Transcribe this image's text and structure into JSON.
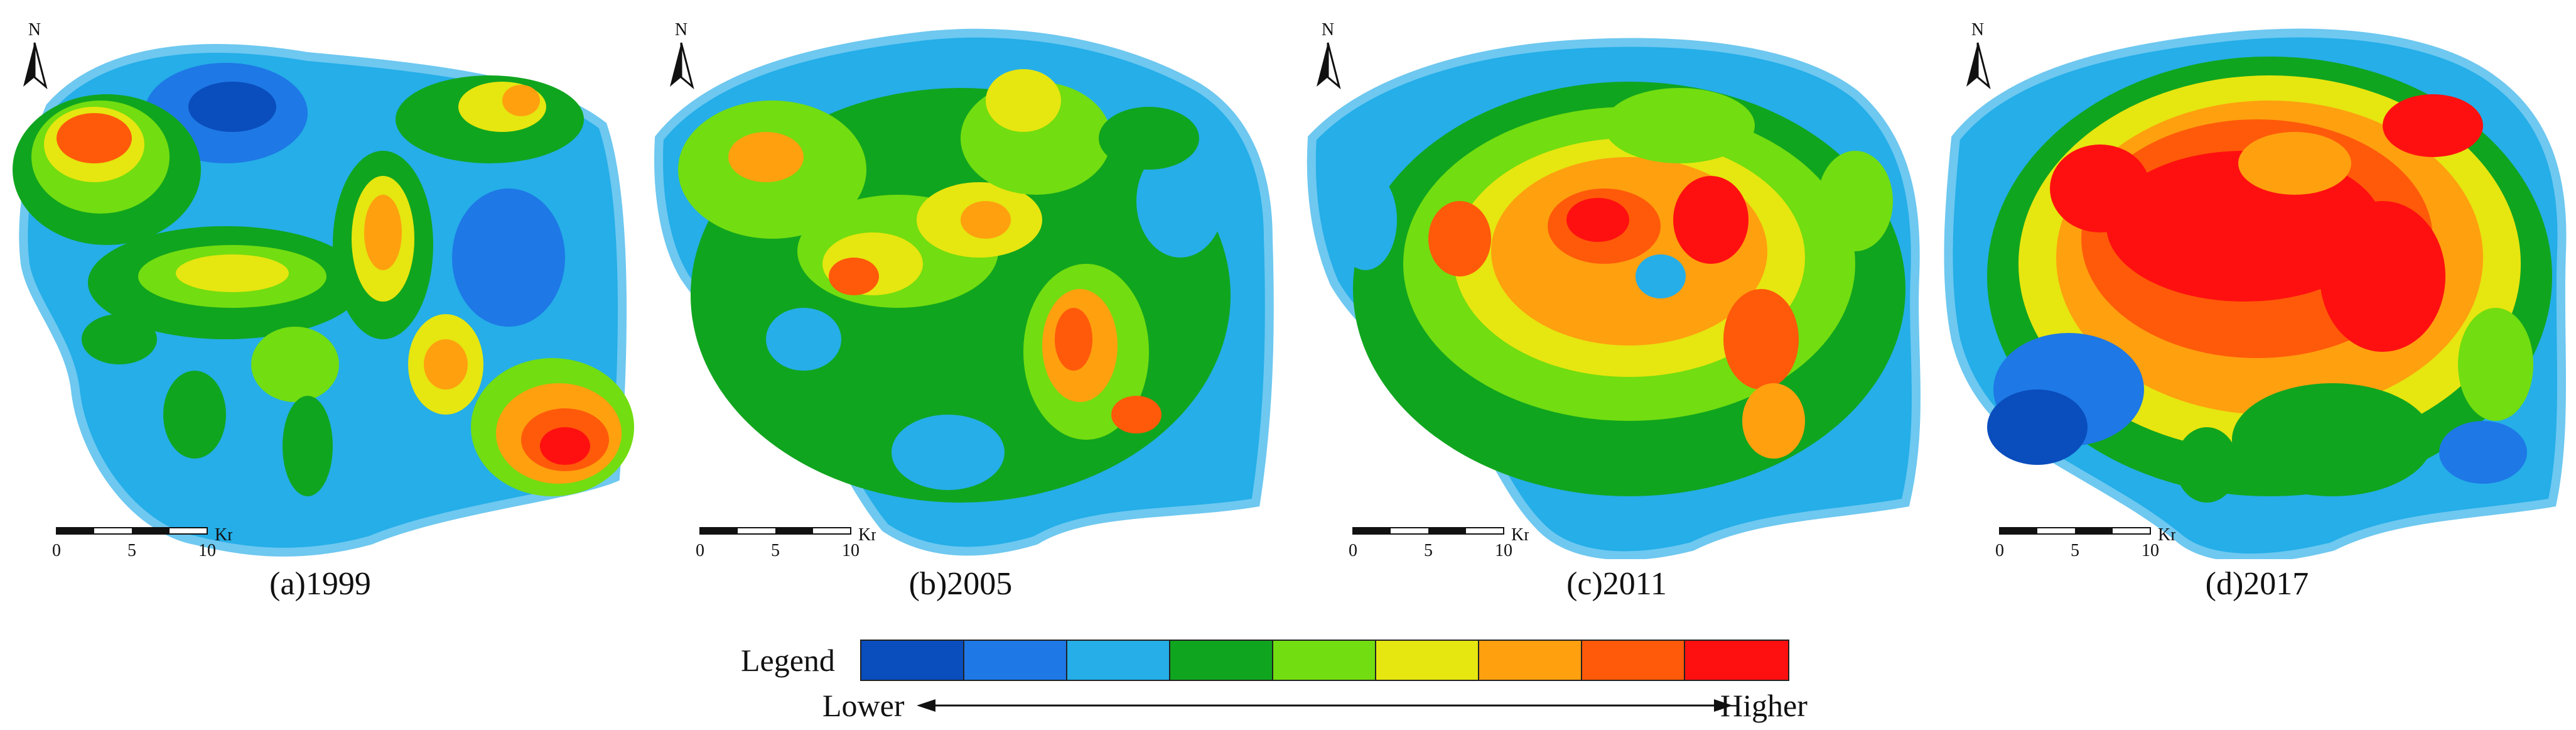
{
  "colors": {
    "ramp": [
      "#0a4dbd",
      "#1e78e6",
      "#25aee8",
      "#10a51f",
      "#72dd10",
      "#e6e610",
      "#ffa00f",
      "#ff5a0a",
      "#ff1010"
    ],
    "outline": "#6ec8f0"
  },
  "panels": [
    {
      "caption": "(a)1999",
      "year": "1999"
    },
    {
      "caption": "(b)2005",
      "year": "2005"
    },
    {
      "caption": "(c)2011",
      "year": "2011"
    },
    {
      "caption": "(d)2017",
      "year": "2017"
    }
  ],
  "north_label": "N",
  "scale_bar": {
    "ticks": [
      "0",
      "5",
      "10"
    ],
    "unit": "Km"
  },
  "legend": {
    "title": "Legend",
    "low_label": "Lower",
    "high_label": "Higher"
  }
}
